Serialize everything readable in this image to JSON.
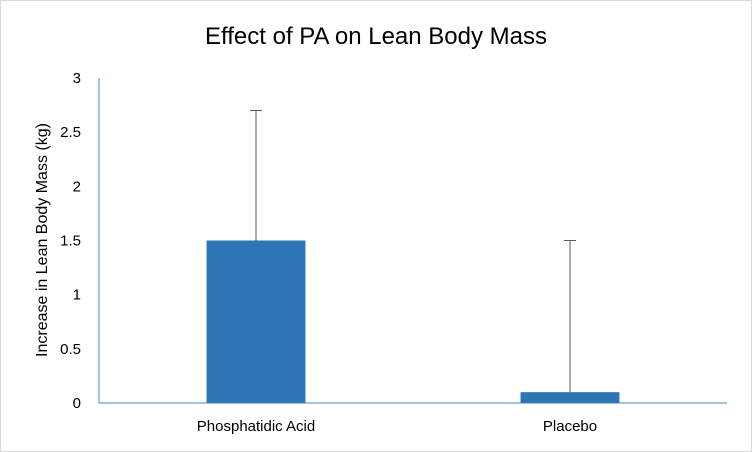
{
  "chart_data": {
    "type": "bar",
    "title": "Effect of PA on Lean Body Mass",
    "xlabel": "",
    "ylabel": "Increase in Lean Body Mass (kg)",
    "categories": [
      "Phosphatidic Acid",
      "Placebo"
    ],
    "values": [
      1.5,
      0.1
    ],
    "error_upper": [
      1.2,
      1.4
    ],
    "ylim": [
      0,
      3
    ],
    "yticks": [
      0,
      0.5,
      1,
      1.5,
      2,
      2.5,
      3
    ],
    "ytick_labels": [
      "0",
      "0.5",
      "1",
      "1.5",
      "2",
      "2.5",
      "3"
    ],
    "grid": false,
    "legend": "none",
    "colors": {
      "bar": "#2e75b6",
      "axis": "#4a8bb8",
      "error_bar": "#595959"
    }
  }
}
